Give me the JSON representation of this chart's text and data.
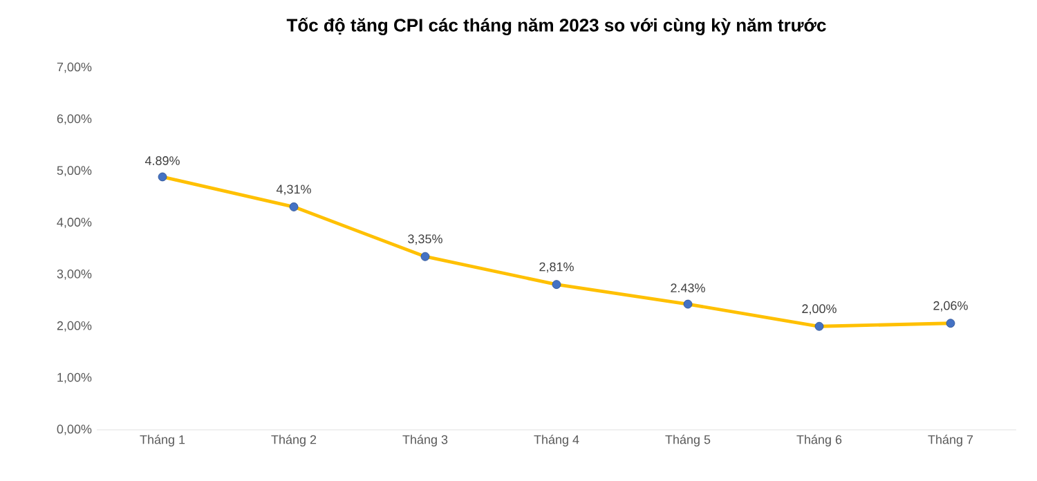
{
  "chart_data": {
    "type": "line",
    "title": "Tốc độ tăng CPI các tháng năm 2023 so với cùng kỳ năm trước",
    "categories": [
      "Tháng 1",
      "Tháng 2",
      "Tháng 3",
      "Tháng 4",
      "Tháng 5",
      "Tháng 6",
      "Tháng 7"
    ],
    "series": [
      {
        "color": "#ffc000",
        "colors": [
          "#4472c4",
          "#4472c4",
          "#4472c4",
          "#4472c4",
          "#4472c4",
          "#4472c4",
          "#4472c4"
        ],
        "values": [
          4.89,
          4.31,
          3.35,
          2.81,
          2.43,
          2.0,
          2.06
        ],
        "value_labels": [
          "4.89%",
          "4,31%",
          "3,35%",
          "2,81%",
          "2.43%",
          "2,00%",
          "2,06%"
        ]
      }
    ],
    "ylim": [
      0,
      7
    ],
    "yticks": [
      {
        "value": 0,
        "label": "0,00%"
      },
      {
        "value": 1,
        "label": "1,00%"
      },
      {
        "value": 2,
        "label": "2,00%"
      },
      {
        "value": 3,
        "label": "3,00%"
      },
      {
        "value": 4,
        "label": "4,00%"
      },
      {
        "value": 5,
        "label": "5,00%"
      },
      {
        "value": 6,
        "label": "6,00%"
      },
      {
        "value": 7,
        "label": "7,00%"
      }
    ],
    "grid": false,
    "marker": "circle",
    "line_style": "solid"
  }
}
